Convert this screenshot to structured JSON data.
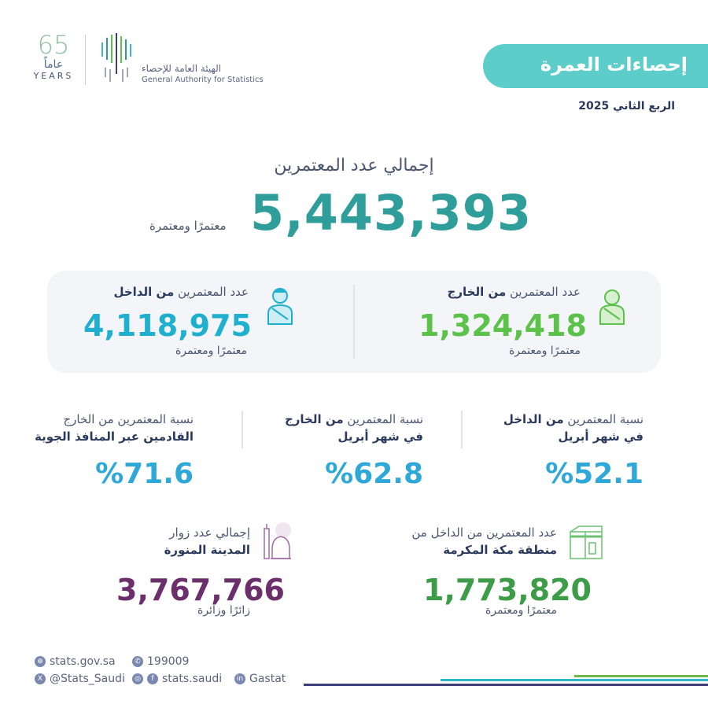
{
  "header": {
    "anniversary_number": "65",
    "anniversary_arabic": "عاماً",
    "anniversary_years": "YEARS",
    "org_name_ar": "الهيئة العامة للإحصاء",
    "org_name_en": "General Authority for Statistics",
    "title": "إحصاءات العمرة",
    "period": "الربع الثاني 2025"
  },
  "total": {
    "label": "إجمالي عدد المعتمرين",
    "value": "5,443,393",
    "unit": "معتمرًا ومعتمرة"
  },
  "card": {
    "external": {
      "label_normal": "عدد المعتمرين ",
      "label_bold": "من الخارج",
      "value": "1,324,418",
      "unit": "معتمرًا ومعتمرة",
      "color": "#5cc24a"
    },
    "internal": {
      "label_normal": "عدد المعتمرين ",
      "label_bold": "من الداخل",
      "value": "4,118,975",
      "unit": "معتمرًا ومعتمرة",
      "color": "#1fb0d0"
    }
  },
  "percentages": [
    {
      "line1_normal": "نسبة المعتمرين ",
      "line1_bold": "من الداخل",
      "line2": "في شهر أبريل",
      "value": "%52.1"
    },
    {
      "line1_normal": "نسبة المعتمرين ",
      "line1_bold": "من الخارج",
      "line2": "في شهر أبريل",
      "value": "%62.8"
    },
    {
      "line1_normal": "نسبة المعتمرين من الخارج",
      "line1_bold": "",
      "line2": "القادمين عبر المنافذ الجوية",
      "value": "%71.6"
    }
  ],
  "makkah": {
    "line1": "عدد المعتمرين من الداخل من",
    "line2": "منطقة مكة المكرمة",
    "value": "1,773,820",
    "unit": "معتمرًا ومعتمرة",
    "color": "#3d9c48",
    "icon": "kaaba-icon"
  },
  "madinah": {
    "line1": "إجمالي عدد زوار",
    "line2": "المدينة المنورة",
    "value": "3,767,766",
    "unit": "زائرًا وزائرة",
    "color": "#6b2f6b",
    "icon": "mosque-icon"
  },
  "footer": {
    "website": "stats.gov.sa",
    "phone": "199009",
    "twitter": "@Stats_Saudi",
    "social": "stats.saudi",
    "linkedin": "Gastat"
  },
  "colors": {
    "accent": "#5ccdc9",
    "total": "#2f9e9a",
    "percent": "#2ea8d8",
    "navy": "#3d3f78"
  }
}
